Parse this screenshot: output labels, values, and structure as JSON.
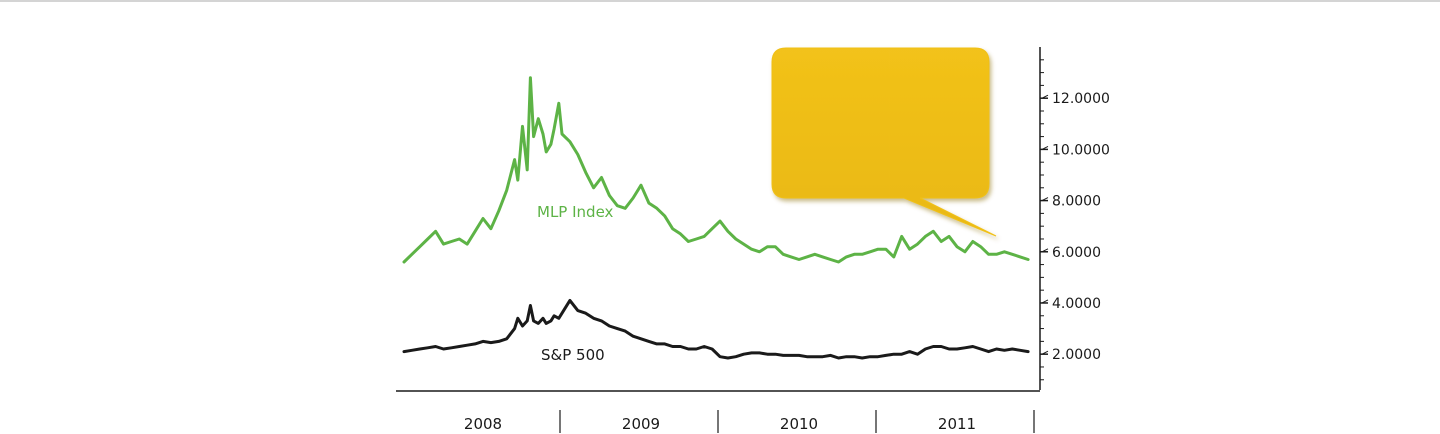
{
  "chart_data": {
    "type": "line",
    "title": "",
    "xlabel": "",
    "ylabel": "",
    "x_categories": [
      "2008",
      "2009",
      "2010",
      "2011"
    ],
    "ylim": [
      0.6,
      14.0
    ],
    "y_ticks": [
      {
        "value": 2,
        "label": "2.0000"
      },
      {
        "value": 4,
        "label": "4.0000"
      },
      {
        "value": 6,
        "label": "6.0000"
      },
      {
        "value": 8,
        "label": "8.0000"
      },
      {
        "value": 10,
        "label": "10.0000"
      },
      {
        "value": 12,
        "label": "12.0000"
      }
    ],
    "grid": false,
    "y_axis_position": "right",
    "series": [
      {
        "name": "MLP Index",
        "color": "#5db346",
        "x": [
          2008.0,
          2008.05,
          2008.1,
          2008.15,
          2008.2,
          2008.25,
          2008.3,
          2008.35,
          2008.4,
          2008.45,
          2008.5,
          2008.55,
          2008.6,
          2008.65,
          2008.7,
          2008.72,
          2008.75,
          2008.78,
          2008.8,
          2008.82,
          2008.85,
          2008.88,
          2008.9,
          2008.93,
          2008.95,
          2008.98,
          2009.0,
          2009.05,
          2009.1,
          2009.15,
          2009.2,
          2009.25,
          2009.3,
          2009.35,
          2009.4,
          2009.45,
          2009.5,
          2009.55,
          2009.6,
          2009.65,
          2009.7,
          2009.75,
          2009.8,
          2009.85,
          2009.9,
          2009.95,
          2010.0,
          2010.05,
          2010.1,
          2010.15,
          2010.2,
          2010.25,
          2010.3,
          2010.35,
          2010.4,
          2010.45,
          2010.5,
          2010.55,
          2010.6,
          2010.65,
          2010.7,
          2010.75,
          2010.8,
          2010.85,
          2010.9,
          2010.95,
          2011.0,
          2011.05,
          2011.1,
          2011.15,
          2011.2,
          2011.25,
          2011.3,
          2011.35,
          2011.4,
          2011.45,
          2011.5,
          2011.55,
          2011.6,
          2011.65,
          2011.7,
          2011.75,
          2011.8,
          2011.85,
          2011.9,
          2011.95
        ],
        "values": [
          5.6,
          5.9,
          6.2,
          6.5,
          6.8,
          6.3,
          6.4,
          6.5,
          6.3,
          6.8,
          7.3,
          6.9,
          7.6,
          8.4,
          9.6,
          8.8,
          10.9,
          9.2,
          12.8,
          10.5,
          11.2,
          10.6,
          9.9,
          10.2,
          10.8,
          11.8,
          10.6,
          10.3,
          9.8,
          9.1,
          8.5,
          8.9,
          8.2,
          7.8,
          7.7,
          8.1,
          8.6,
          7.9,
          7.7,
          7.4,
          6.9,
          6.7,
          6.4,
          6.5,
          6.6,
          6.9,
          7.2,
          6.8,
          6.5,
          6.3,
          6.1,
          6.0,
          6.2,
          6.2,
          5.9,
          5.8,
          5.7,
          5.8,
          5.9,
          5.8,
          5.7,
          5.6,
          5.8,
          5.9,
          5.9,
          6.0,
          6.1,
          6.1,
          5.8,
          6.6,
          6.1,
          6.3,
          6.6,
          6.8,
          6.4,
          6.6,
          6.2,
          6.0,
          6.4,
          6.2,
          5.9,
          5.9,
          6.0,
          5.9,
          5.8,
          5.7
        ]
      },
      {
        "name": "S&P 500",
        "color": "#1a1a1a",
        "x": [
          2008.0,
          2008.05,
          2008.1,
          2008.15,
          2008.2,
          2008.25,
          2008.3,
          2008.35,
          2008.4,
          2008.45,
          2008.5,
          2008.55,
          2008.6,
          2008.65,
          2008.7,
          2008.72,
          2008.75,
          2008.78,
          2008.8,
          2008.82,
          2008.85,
          2008.88,
          2008.9,
          2008.93,
          2008.95,
          2008.98,
          2009.0,
          2009.05,
          2009.1,
          2009.15,
          2009.2,
          2009.25,
          2009.3,
          2009.35,
          2009.4,
          2009.45,
          2009.5,
          2009.55,
          2009.6,
          2009.65,
          2009.7,
          2009.75,
          2009.8,
          2009.85,
          2009.9,
          2009.95,
          2010.0,
          2010.05,
          2010.1,
          2010.15,
          2010.2,
          2010.25,
          2010.3,
          2010.35,
          2010.4,
          2010.45,
          2010.5,
          2010.55,
          2010.6,
          2010.65,
          2010.7,
          2010.75,
          2010.8,
          2010.85,
          2010.9,
          2010.95,
          2011.0,
          2011.05,
          2011.1,
          2011.15,
          2011.2,
          2011.25,
          2011.3,
          2011.35,
          2011.4,
          2011.45,
          2011.5,
          2011.55,
          2011.6,
          2011.65,
          2011.7,
          2011.75,
          2011.8,
          2011.85,
          2011.9,
          2011.95
        ],
        "values": [
          2.1,
          2.15,
          2.2,
          2.25,
          2.3,
          2.2,
          2.25,
          2.3,
          2.35,
          2.4,
          2.5,
          2.45,
          2.5,
          2.6,
          3.0,
          3.4,
          3.1,
          3.3,
          3.9,
          3.3,
          3.2,
          3.4,
          3.2,
          3.3,
          3.5,
          3.4,
          3.6,
          4.1,
          3.7,
          3.6,
          3.4,
          3.3,
          3.1,
          3.0,
          2.9,
          2.7,
          2.6,
          2.5,
          2.4,
          2.4,
          2.3,
          2.3,
          2.2,
          2.2,
          2.3,
          2.2,
          1.9,
          1.85,
          1.9,
          2.0,
          2.05,
          2.05,
          2.0,
          2.0,
          1.95,
          1.95,
          1.95,
          1.9,
          1.9,
          1.9,
          1.95,
          1.85,
          1.9,
          1.9,
          1.85,
          1.9,
          1.9,
          1.95,
          2.0,
          2.0,
          2.1,
          2.0,
          2.2,
          2.3,
          2.3,
          2.2,
          2.2,
          2.25,
          2.3,
          2.2,
          2.1,
          2.2,
          2.15,
          2.2,
          2.15,
          2.1
        ]
      }
    ],
    "annotations": [
      {
        "type": "callout",
        "text": "",
        "color": "#f0c016"
      }
    ]
  }
}
